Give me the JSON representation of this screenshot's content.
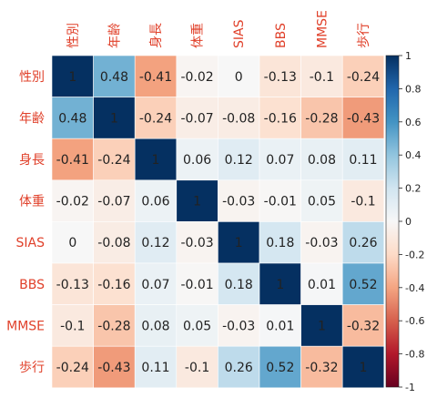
{
  "chart_data": {
    "type": "heatmap",
    "title": "",
    "variables": [
      "性別",
      "年齢",
      "身長",
      "体重",
      "SIAS",
      "BBS",
      "MMSE",
      "歩行"
    ],
    "matrix": [
      [
        1,
        0.48,
        -0.41,
        -0.02,
        0,
        -0.13,
        -0.1,
        -0.24
      ],
      [
        0.48,
        1,
        -0.24,
        -0.07,
        -0.08,
        -0.16,
        -0.28,
        -0.43
      ],
      [
        -0.41,
        -0.24,
        1,
        0.06,
        0.12,
        0.07,
        0.08,
        0.11
      ],
      [
        -0.02,
        -0.07,
        0.06,
        1,
        -0.03,
        -0.01,
        0.05,
        -0.1
      ],
      [
        0,
        -0.08,
        0.12,
        -0.03,
        1,
        0.18,
        -0.03,
        0.26
      ],
      [
        -0.13,
        -0.16,
        0.07,
        -0.01,
        0.18,
        1,
        0.01,
        0.52
      ],
      [
        -0.1,
        -0.28,
        0.08,
        0.05,
        -0.03,
        0.01,
        1,
        -0.32
      ],
      [
        -0.24,
        -0.43,
        0.11,
        -0.1,
        0.26,
        0.52,
        -0.32,
        1
      ]
    ],
    "colorbar": {
      "range": [
        -1,
        1
      ],
      "ticks": [
        "1",
        "0.8",
        "0.6",
        "0.4",
        "0.2",
        "0",
        "-0.2",
        "-0.4",
        "-0.6",
        "-0.8",
        "-1"
      ]
    },
    "colors": {
      "label": "#e0402a",
      "negative_end": "#67001f",
      "positive_end": "#053061"
    }
  }
}
